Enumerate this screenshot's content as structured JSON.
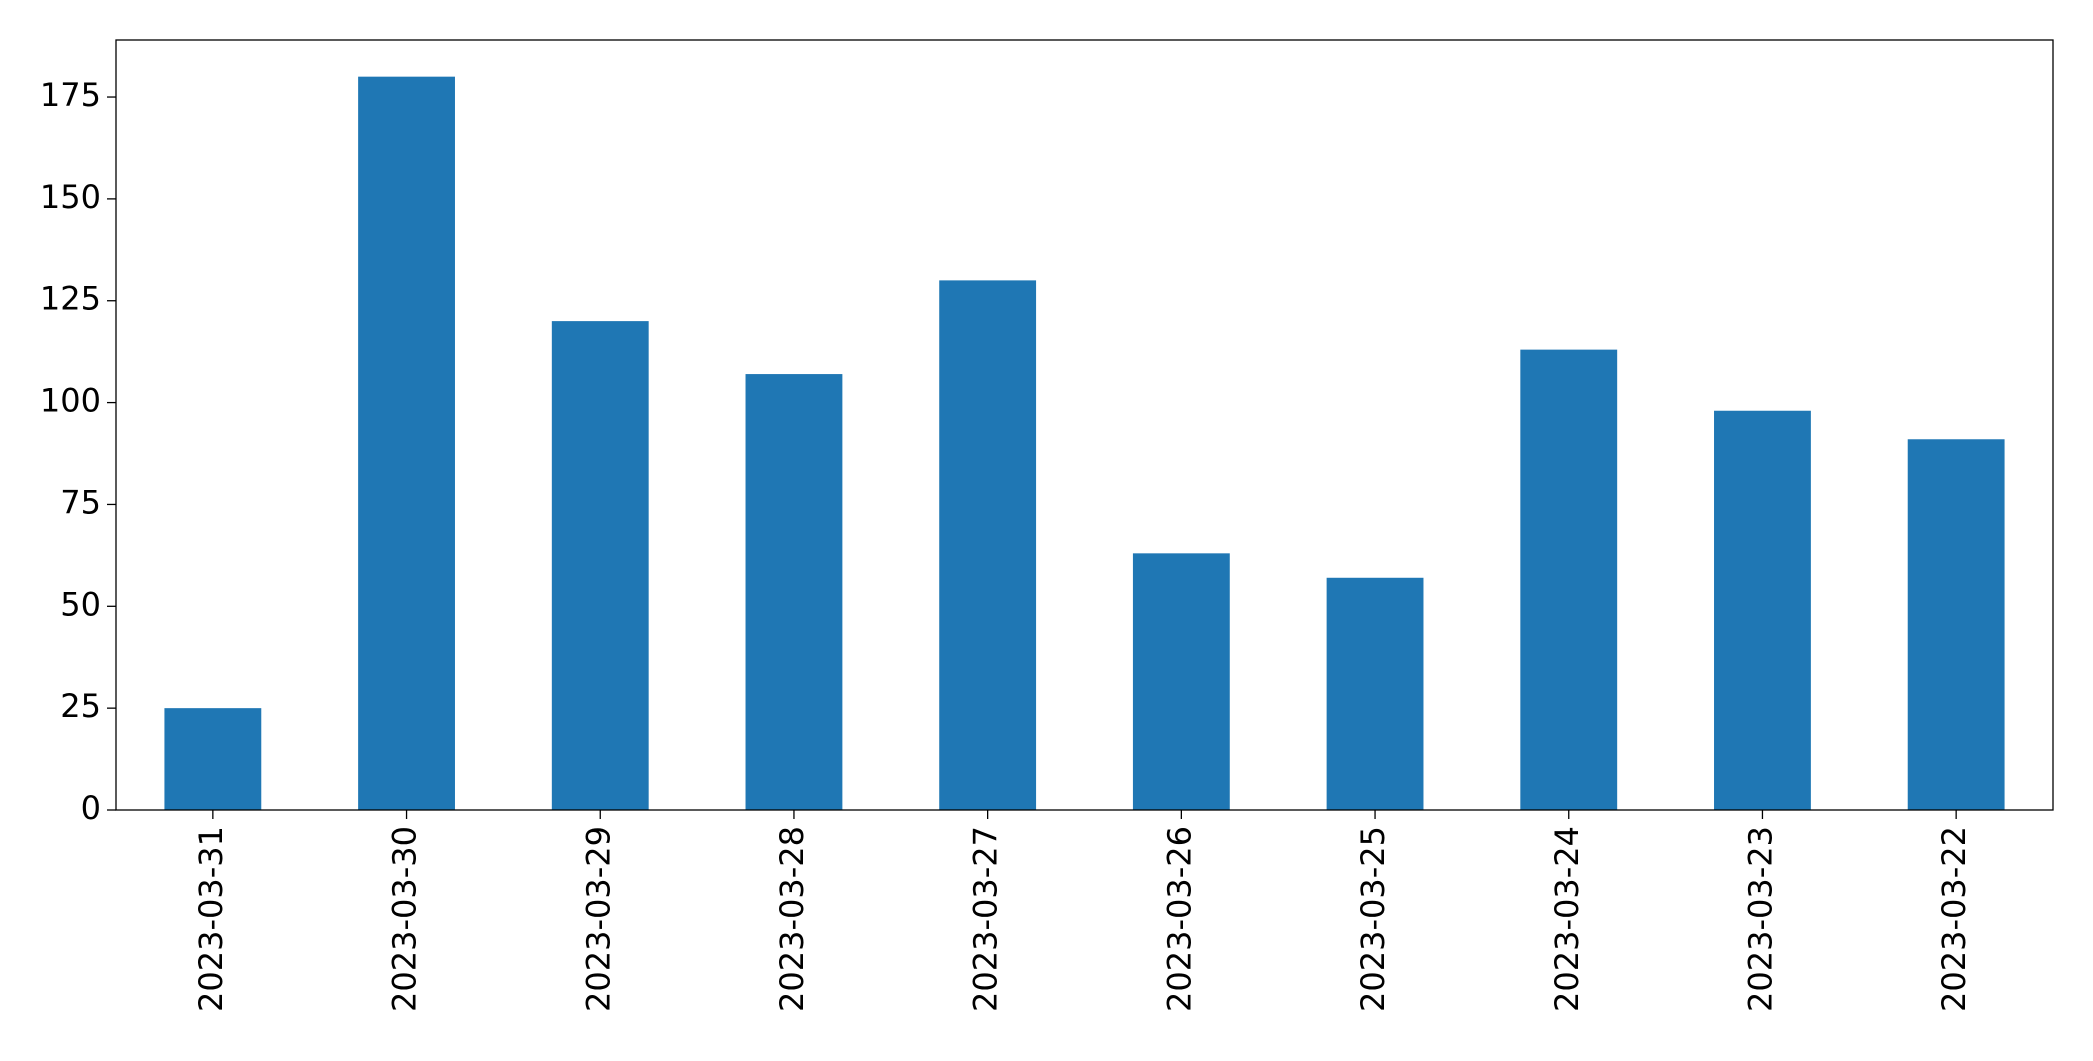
{
  "chart_data": {
    "type": "bar",
    "categories": [
      "2023-03-31",
      "2023-03-30",
      "2023-03-29",
      "2023-03-28",
      "2023-03-27",
      "2023-03-26",
      "2023-03-25",
      "2023-03-24",
      "2023-03-23",
      "2023-03-22"
    ],
    "values": [
      25,
      180,
      120,
      107,
      130,
      63,
      57,
      113,
      98,
      91
    ],
    "color": "#1f77b4",
    "ylim": [
      0,
      189
    ],
    "yticks": [
      0,
      25,
      50,
      75,
      100,
      125,
      150,
      175
    ],
    "grid": false
  }
}
